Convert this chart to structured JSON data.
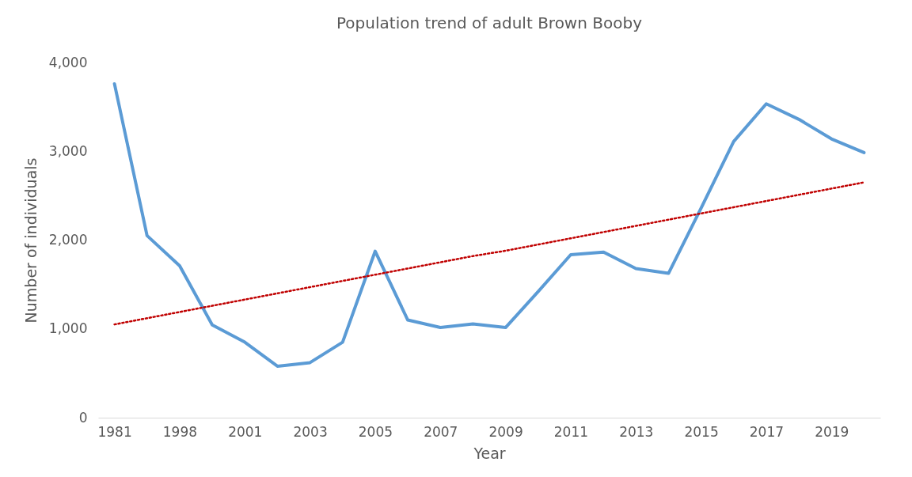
{
  "chart_data": {
    "type": "line",
    "title": "Population trend of adult Brown Booby",
    "xlabel": "Year",
    "ylabel": "Number of individuals",
    "categories": [
      "1981",
      null,
      "1998",
      null,
      "2001",
      null,
      "2003",
      null,
      "2005",
      null,
      "2007",
      null,
      "2009",
      null,
      "2011",
      null,
      "2013",
      null,
      "2015",
      null,
      "2017",
      null,
      "2019",
      null
    ],
    "series": [
      {
        "color": "#5b9bd5",
        "line_style": "solid",
        "values": [
          3760,
          2050,
          1710,
          1045,
          850,
          580,
          620,
          850,
          1875,
          1100,
          1015,
          1055,
          1015,
          1420,
          1835,
          1865,
          1680,
          1625,
          2360,
          3110,
          3535,
          3360,
          3140,
          2985
        ]
      },
      {
        "type": "line",
        "color": "#c00000",
        "line_style": "dotted",
        "values": [
          1050,
          1120,
          1190,
          1260,
          1330,
          1400,
          1470,
          1540,
          1610,
          1680,
          1750,
          1820,
          1880,
          1950,
          2020,
          2090,
          2160,
          2230,
          2300,
          2370,
          2440,
          2510,
          2580,
          2650
        ]
      }
    ],
    "ylim": [
      0,
      4000
    ],
    "yticks": [
      {
        "value": 0,
        "label": "0"
      },
      {
        "value": 1000,
        "label": "1,000"
      },
      {
        "value": 2000,
        "label": "2,000"
      },
      {
        "value": 3000,
        "label": "3,000"
      },
      {
        "value": 4000,
        "label": "4,000"
      }
    ],
    "grid": false,
    "legend": false,
    "marker": "none"
  }
}
